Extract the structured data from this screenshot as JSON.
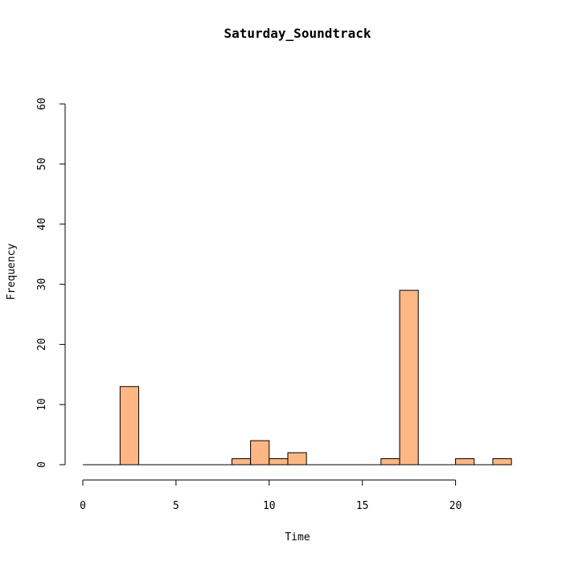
{
  "chart_data": {
    "type": "bar",
    "title": "Saturday_Soundtrack",
    "xlabel": "Time",
    "ylabel": "Frequency",
    "xlim": [
      0,
      24
    ],
    "ylim": [
      0,
      60
    ],
    "x_ticks": [
      0,
      5,
      10,
      15,
      20
    ],
    "y_ticks": [
      0,
      10,
      20,
      30,
      40,
      50,
      60
    ],
    "bin_width": 1,
    "bins": [
      {
        "start": 0,
        "value": 0
      },
      {
        "start": 1,
        "value": 0
      },
      {
        "start": 2,
        "value": 13
      },
      {
        "start": 3,
        "value": 0
      },
      {
        "start": 4,
        "value": 0
      },
      {
        "start": 5,
        "value": 0
      },
      {
        "start": 6,
        "value": 0
      },
      {
        "start": 7,
        "value": 0
      },
      {
        "start": 8,
        "value": 1
      },
      {
        "start": 9,
        "value": 4
      },
      {
        "start": 10,
        "value": 1
      },
      {
        "start": 11,
        "value": 2
      },
      {
        "start": 12,
        "value": 0
      },
      {
        "start": 13,
        "value": 0
      },
      {
        "start": 14,
        "value": 0
      },
      {
        "start": 15,
        "value": 0
      },
      {
        "start": 16,
        "value": 1
      },
      {
        "start": 17,
        "value": 29
      },
      {
        "start": 18,
        "value": 0
      },
      {
        "start": 19,
        "value": 0
      },
      {
        "start": 20,
        "value": 1
      },
      {
        "start": 21,
        "value": 0
      },
      {
        "start": 22,
        "value": 1
      }
    ],
    "bar_color": "#FDB784",
    "grid": false
  }
}
